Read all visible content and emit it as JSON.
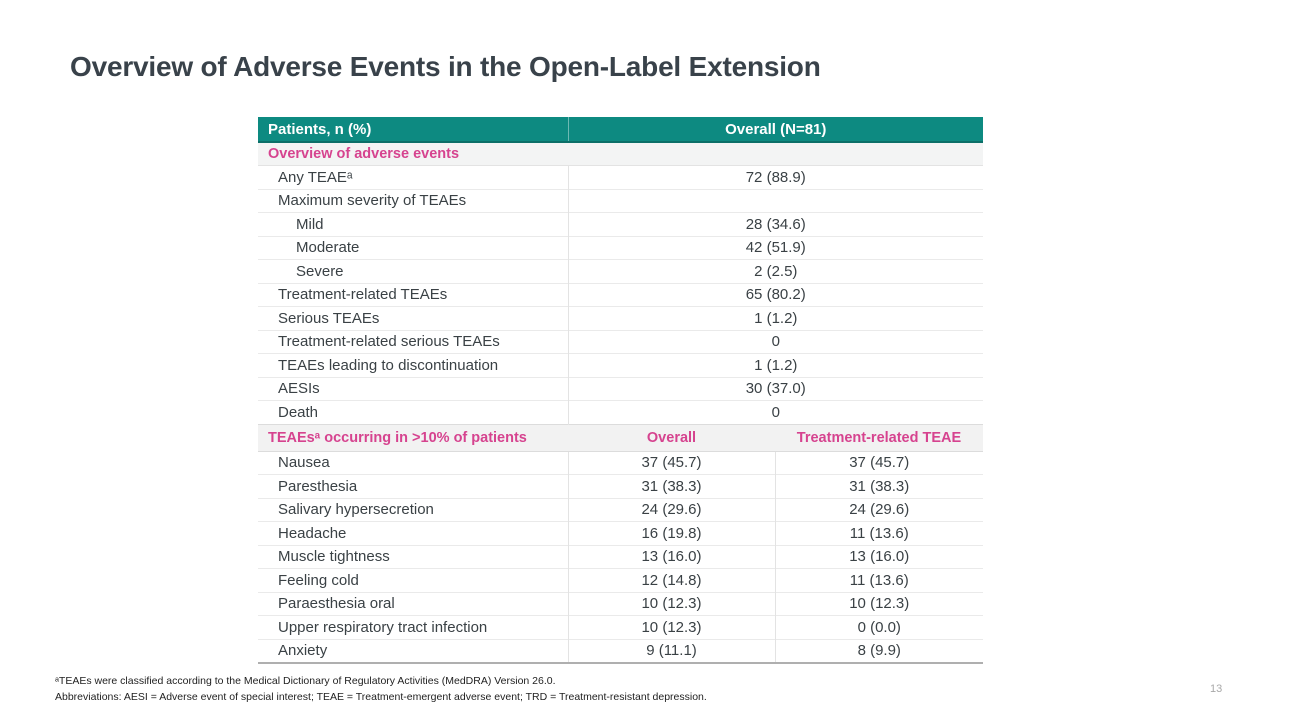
{
  "slide": {
    "title": "Overview of Adverse Events in the Open-Label Extension",
    "page_number": "13",
    "footnote_line1": "ᵃTEAEs were classified according to the Medical Dictionary of Regulatory Activities (MedDRA) Version 26.0.",
    "footnote_line2": "Abbreviations: AESI = Adverse event of special interest; TEAE = Treatment-emergent adverse event; TRD = Treatment-resistant depression."
  },
  "colors": {
    "header_teal": "#0D8A81",
    "header_teal_dark": "#0C6F68",
    "section_pink": "#D6438F",
    "band_gray": "#F2F2F2",
    "body_text": "#3A4145"
  },
  "table": {
    "header": {
      "col1": "Patients, n (%)",
      "col2": "Overall (N=81)"
    },
    "section1": {
      "title": "Overview of adverse events",
      "rows": [
        {
          "label": "Any TEAEᵃ",
          "value": "72 (88.9)",
          "indent": 1
        },
        {
          "label": "Maximum severity of TEAEs",
          "value": "",
          "indent": 1
        },
        {
          "label": "Mild",
          "value": "28 (34.6)",
          "indent": 2
        },
        {
          "label": "Moderate",
          "value": "42 (51.9)",
          "indent": 2
        },
        {
          "label": "Severe",
          "value": "2 (2.5)",
          "indent": 2
        },
        {
          "label": "Treatment-related TEAEs",
          "value": "65 (80.2)",
          "indent": 1
        },
        {
          "label": "Serious TEAEs",
          "value": "1 (1.2)",
          "indent": 1
        },
        {
          "label": "Treatment-related serious TEAEs",
          "value": "0",
          "indent": 1
        },
        {
          "label": "TEAEs leading to discontinuation",
          "value": "1 (1.2)",
          "indent": 1
        },
        {
          "label": "AESIs",
          "value": "30 (37.0)",
          "indent": 1
        },
        {
          "label": "Death",
          "value": "0",
          "indent": 1
        }
      ]
    },
    "section2": {
      "title": "TEAEsᵃ occurring in >10% of patients",
      "col2": "Overall",
      "col3": "Treatment-related TEAE",
      "rows": [
        {
          "label": "Nausea",
          "overall": "37 (45.7)",
          "related": "37 (45.7)"
        },
        {
          "label": "Paresthesia",
          "overall": "31 (38.3)",
          "related": "31 (38.3)"
        },
        {
          "label": "Salivary hypersecretion",
          "overall": "24 (29.6)",
          "related": "24 (29.6)"
        },
        {
          "label": "Headache",
          "overall": "16 (19.8)",
          "related": "11 (13.6)"
        },
        {
          "label": "Muscle tightness",
          "overall": "13 (16.0)",
          "related": "13 (16.0)"
        },
        {
          "label": "Feeling cold",
          "overall": "12 (14.8)",
          "related": "11 (13.6)"
        },
        {
          "label": "Paraesthesia oral",
          "overall": "10 (12.3)",
          "related": "10 (12.3)"
        },
        {
          "label": "Upper respiratory tract infection",
          "overall": "10 (12.3)",
          "related": "0 (0.0)"
        },
        {
          "label": "Anxiety",
          "overall": "9 (11.1)",
          "related": "8 (9.9)"
        }
      ]
    }
  }
}
